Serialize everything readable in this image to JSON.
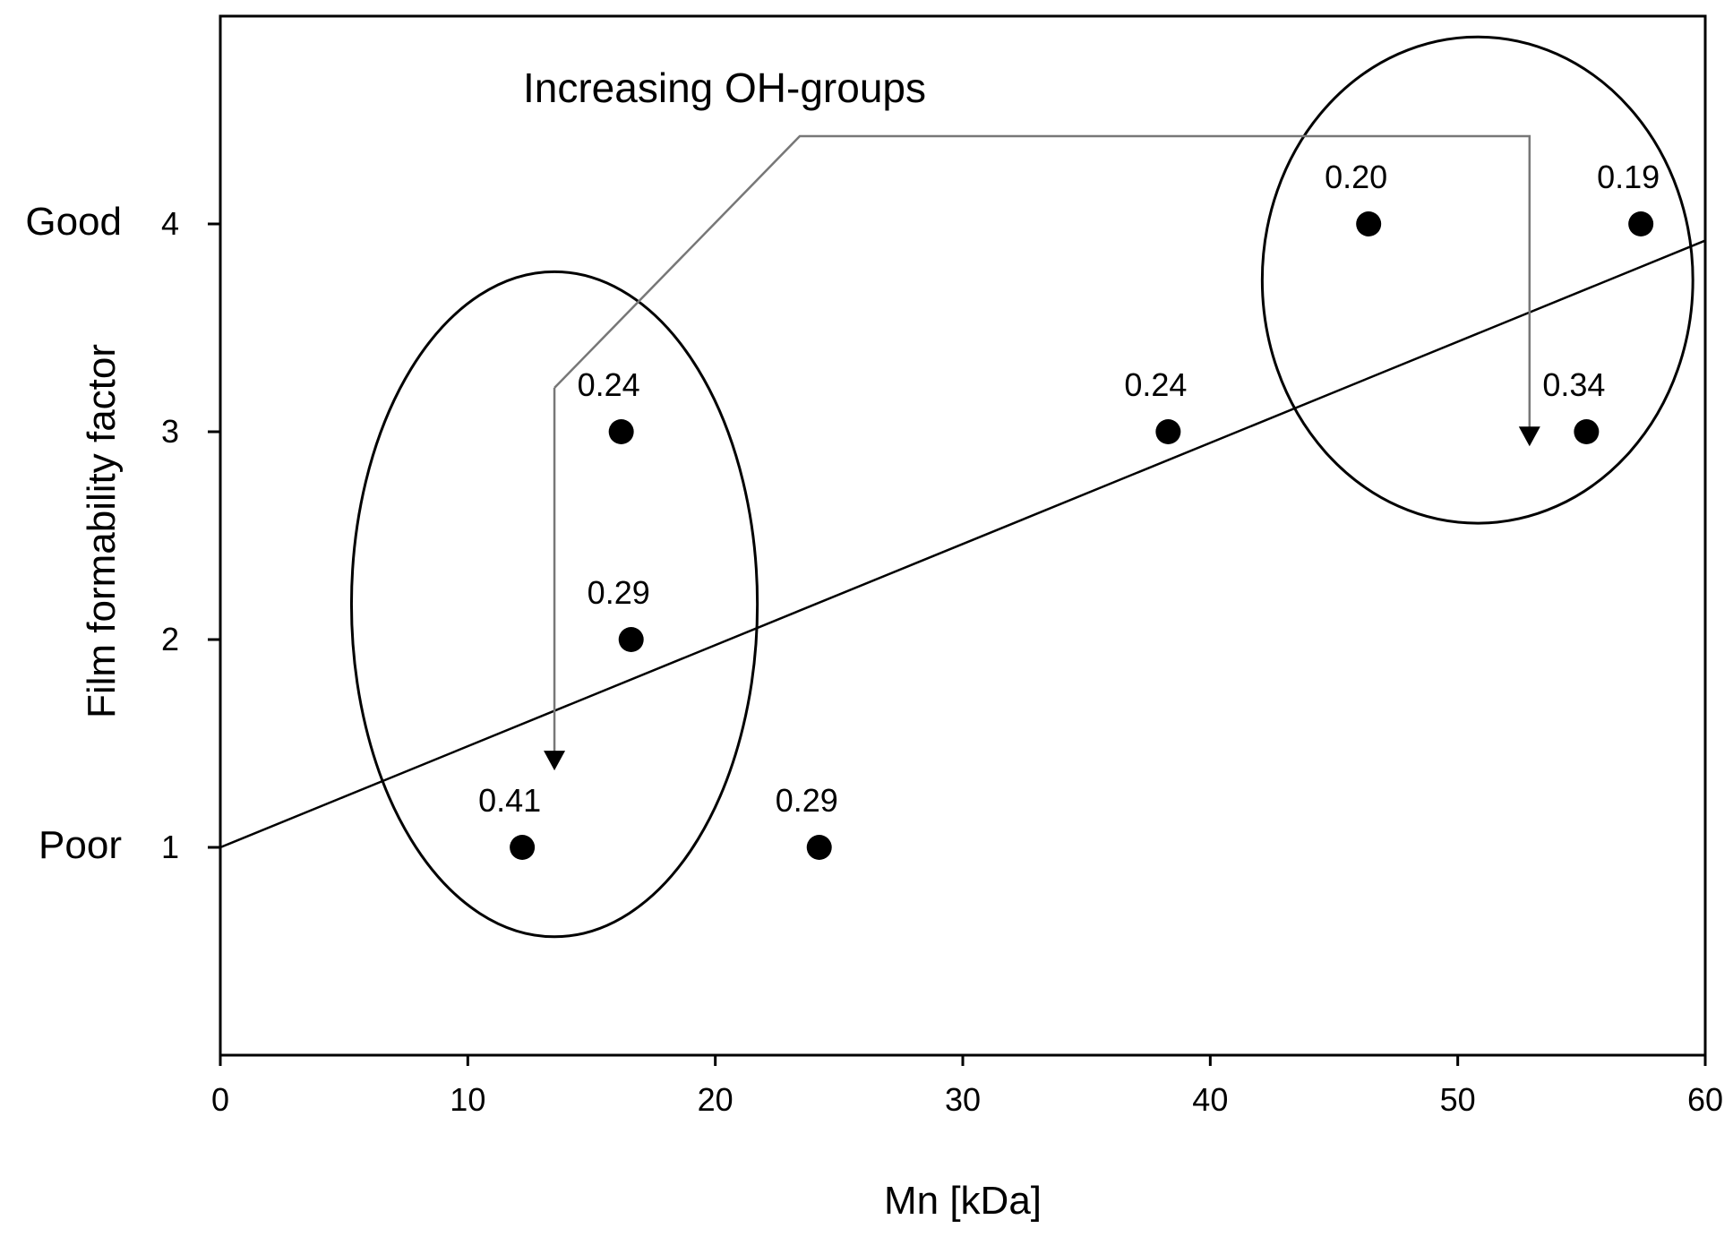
{
  "chart_data": {
    "type": "scatter",
    "xlabel": "Mn [kDa]",
    "ylabel": "Film formability factor",
    "xlim": [
      0,
      60
    ],
    "ylim": [
      0,
      5
    ],
    "x_ticks": [
      0,
      10,
      20,
      30,
      40,
      50,
      60
    ],
    "y_ticks": [
      1,
      2,
      3,
      4
    ],
    "y_tick_labels": [
      "1",
      "2",
      "3",
      "4"
    ],
    "x_tick_labels": [
      "0",
      "10",
      "20",
      "30",
      "40",
      "50",
      "60"
    ],
    "y_category_labels": [
      {
        "y": 4,
        "label": "Good"
      },
      {
        "y": 1,
        "label": "Poor"
      }
    ],
    "points": [
      {
        "x": 12.2,
        "y": 1,
        "label": "0.41"
      },
      {
        "x": 16.2,
        "y": 3,
        "label": "0.24"
      },
      {
        "x": 16.6,
        "y": 2,
        "label": "0.29"
      },
      {
        "x": 24.2,
        "y": 1,
        "label": "0.29"
      },
      {
        "x": 38.3,
        "y": 3,
        "label": "0.24"
      },
      {
        "x": 46.4,
        "y": 4,
        "label": "0.20"
      },
      {
        "x": 55.2,
        "y": 3,
        "label": "0.34"
      },
      {
        "x": 57.4,
        "y": 4,
        "label": "0.19"
      }
    ],
    "trendline": {
      "x1": 0,
      "y1": 1.0,
      "x2": 60,
      "y2": 3.92
    },
    "annotation": {
      "text": "Increasing OH-groups",
      "arrows": [
        {
          "target_x": 13.5,
          "target_y": 1.37
        },
        {
          "target_x": 52.9,
          "target_y": 2.93
        }
      ]
    },
    "groups": [
      {
        "center_x": 13.5,
        "center_y": 2.17,
        "radius_x": 8.2,
        "radius_y": 1.6
      },
      {
        "center_x": 50.8,
        "center_y": 3.73,
        "radius_x": 8.7,
        "radius_y": 1.17
      }
    ]
  }
}
